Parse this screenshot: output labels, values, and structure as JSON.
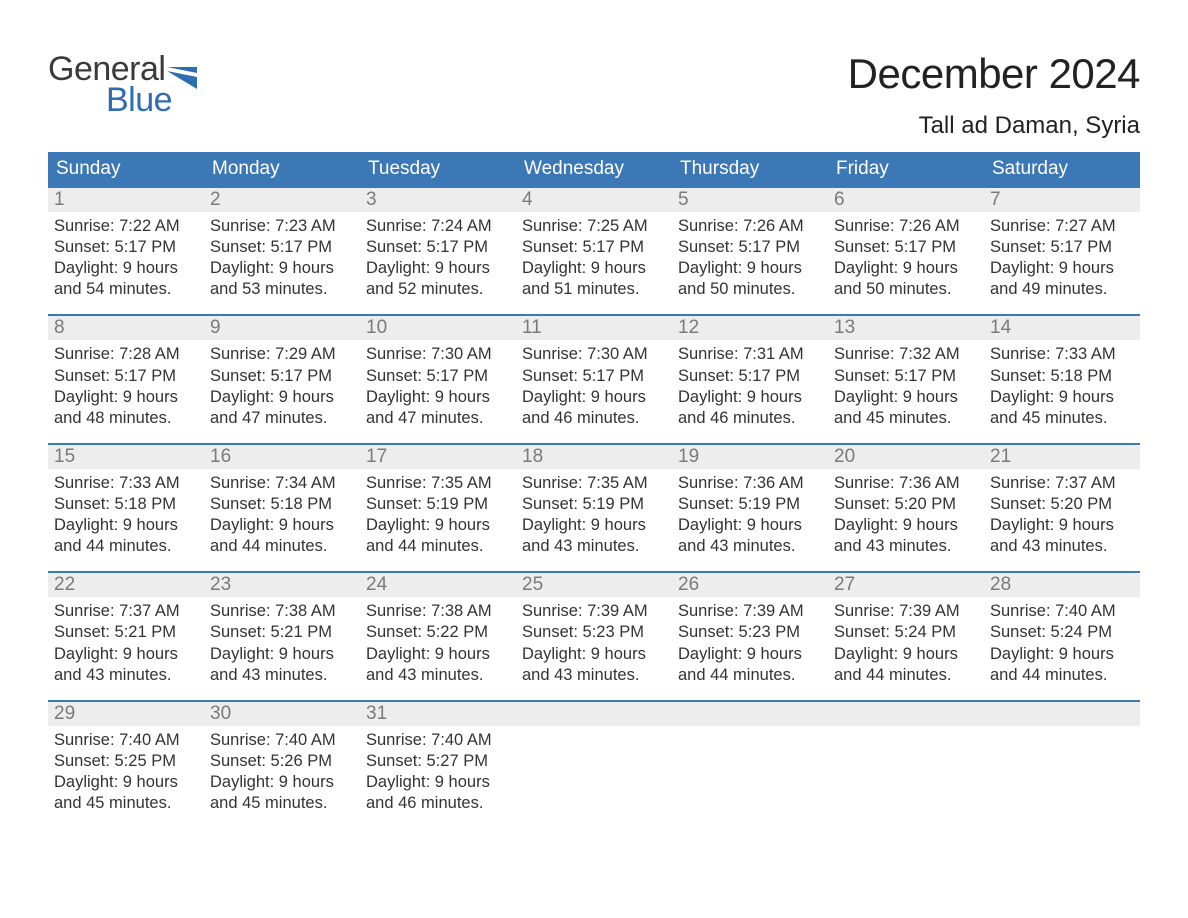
{
  "logo": {
    "text_general": "General",
    "text_blue": "Blue",
    "flag_color": "#2f6db3"
  },
  "title": "December 2024",
  "location": "Tall ad Daman, Syria",
  "colors": {
    "header_bg": "#3b78b5",
    "header_text": "#ffffff",
    "week_divider": "#3b78b5",
    "daynum_bg": "#ededed",
    "daynum_text": "#7a7a7a",
    "body_text": "#333333",
    "page_bg": "#ffffff"
  },
  "fonts": {
    "title_size_pt": 42,
    "location_size_pt": 24,
    "weekday_size_pt": 19,
    "daynum_size_pt": 19,
    "body_size_pt": 16.5
  },
  "weekdays": [
    "Sunday",
    "Monday",
    "Tuesday",
    "Wednesday",
    "Thursday",
    "Friday",
    "Saturday"
  ],
  "weeks": [
    [
      {
        "n": "1",
        "sunrise": "7:22 AM",
        "sunset": "5:17 PM",
        "dl1": "Daylight: 9 hours",
        "dl2": "and 54 minutes."
      },
      {
        "n": "2",
        "sunrise": "7:23 AM",
        "sunset": "5:17 PM",
        "dl1": "Daylight: 9 hours",
        "dl2": "and 53 minutes."
      },
      {
        "n": "3",
        "sunrise": "7:24 AM",
        "sunset": "5:17 PM",
        "dl1": "Daylight: 9 hours",
        "dl2": "and 52 minutes."
      },
      {
        "n": "4",
        "sunrise": "7:25 AM",
        "sunset": "5:17 PM",
        "dl1": "Daylight: 9 hours",
        "dl2": "and 51 minutes."
      },
      {
        "n": "5",
        "sunrise": "7:26 AM",
        "sunset": "5:17 PM",
        "dl1": "Daylight: 9 hours",
        "dl2": "and 50 minutes."
      },
      {
        "n": "6",
        "sunrise": "7:26 AM",
        "sunset": "5:17 PM",
        "dl1": "Daylight: 9 hours",
        "dl2": "and 50 minutes."
      },
      {
        "n": "7",
        "sunrise": "7:27 AM",
        "sunset": "5:17 PM",
        "dl1": "Daylight: 9 hours",
        "dl2": "and 49 minutes."
      }
    ],
    [
      {
        "n": "8",
        "sunrise": "7:28 AM",
        "sunset": "5:17 PM",
        "dl1": "Daylight: 9 hours",
        "dl2": "and 48 minutes."
      },
      {
        "n": "9",
        "sunrise": "7:29 AM",
        "sunset": "5:17 PM",
        "dl1": "Daylight: 9 hours",
        "dl2": "and 47 minutes."
      },
      {
        "n": "10",
        "sunrise": "7:30 AM",
        "sunset": "5:17 PM",
        "dl1": "Daylight: 9 hours",
        "dl2": "and 47 minutes."
      },
      {
        "n": "11",
        "sunrise": "7:30 AM",
        "sunset": "5:17 PM",
        "dl1": "Daylight: 9 hours",
        "dl2": "and 46 minutes."
      },
      {
        "n": "12",
        "sunrise": "7:31 AM",
        "sunset": "5:17 PM",
        "dl1": "Daylight: 9 hours",
        "dl2": "and 46 minutes."
      },
      {
        "n": "13",
        "sunrise": "7:32 AM",
        "sunset": "5:17 PM",
        "dl1": "Daylight: 9 hours",
        "dl2": "and 45 minutes."
      },
      {
        "n": "14",
        "sunrise": "7:33 AM",
        "sunset": "5:18 PM",
        "dl1": "Daylight: 9 hours",
        "dl2": "and 45 minutes."
      }
    ],
    [
      {
        "n": "15",
        "sunrise": "7:33 AM",
        "sunset": "5:18 PM",
        "dl1": "Daylight: 9 hours",
        "dl2": "and 44 minutes."
      },
      {
        "n": "16",
        "sunrise": "7:34 AM",
        "sunset": "5:18 PM",
        "dl1": "Daylight: 9 hours",
        "dl2": "and 44 minutes."
      },
      {
        "n": "17",
        "sunrise": "7:35 AM",
        "sunset": "5:19 PM",
        "dl1": "Daylight: 9 hours",
        "dl2": "and 44 minutes."
      },
      {
        "n": "18",
        "sunrise": "7:35 AM",
        "sunset": "5:19 PM",
        "dl1": "Daylight: 9 hours",
        "dl2": "and 43 minutes."
      },
      {
        "n": "19",
        "sunrise": "7:36 AM",
        "sunset": "5:19 PM",
        "dl1": "Daylight: 9 hours",
        "dl2": "and 43 minutes."
      },
      {
        "n": "20",
        "sunrise": "7:36 AM",
        "sunset": "5:20 PM",
        "dl1": "Daylight: 9 hours",
        "dl2": "and 43 minutes."
      },
      {
        "n": "21",
        "sunrise": "7:37 AM",
        "sunset": "5:20 PM",
        "dl1": "Daylight: 9 hours",
        "dl2": "and 43 minutes."
      }
    ],
    [
      {
        "n": "22",
        "sunrise": "7:37 AM",
        "sunset": "5:21 PM",
        "dl1": "Daylight: 9 hours",
        "dl2": "and 43 minutes."
      },
      {
        "n": "23",
        "sunrise": "7:38 AM",
        "sunset": "5:21 PM",
        "dl1": "Daylight: 9 hours",
        "dl2": "and 43 minutes."
      },
      {
        "n": "24",
        "sunrise": "7:38 AM",
        "sunset": "5:22 PM",
        "dl1": "Daylight: 9 hours",
        "dl2": "and 43 minutes."
      },
      {
        "n": "25",
        "sunrise": "7:39 AM",
        "sunset": "5:23 PM",
        "dl1": "Daylight: 9 hours",
        "dl2": "and 43 minutes."
      },
      {
        "n": "26",
        "sunrise": "7:39 AM",
        "sunset": "5:23 PM",
        "dl1": "Daylight: 9 hours",
        "dl2": "and 44 minutes."
      },
      {
        "n": "27",
        "sunrise": "7:39 AM",
        "sunset": "5:24 PM",
        "dl1": "Daylight: 9 hours",
        "dl2": "and 44 minutes."
      },
      {
        "n": "28",
        "sunrise": "7:40 AM",
        "sunset": "5:24 PM",
        "dl1": "Daylight: 9 hours",
        "dl2": "and 44 minutes."
      }
    ],
    [
      {
        "n": "29",
        "sunrise": "7:40 AM",
        "sunset": "5:25 PM",
        "dl1": "Daylight: 9 hours",
        "dl2": "and 45 minutes."
      },
      {
        "n": "30",
        "sunrise": "7:40 AM",
        "sunset": "5:26 PM",
        "dl1": "Daylight: 9 hours",
        "dl2": "and 45 minutes."
      },
      {
        "n": "31",
        "sunrise": "7:40 AM",
        "sunset": "5:27 PM",
        "dl1": "Daylight: 9 hours",
        "dl2": "and 46 minutes."
      },
      {
        "empty": true
      },
      {
        "empty": true
      },
      {
        "empty": true
      },
      {
        "empty": true
      }
    ]
  ],
  "labels": {
    "sunrise_prefix": "Sunrise: ",
    "sunset_prefix": "Sunset: "
  }
}
